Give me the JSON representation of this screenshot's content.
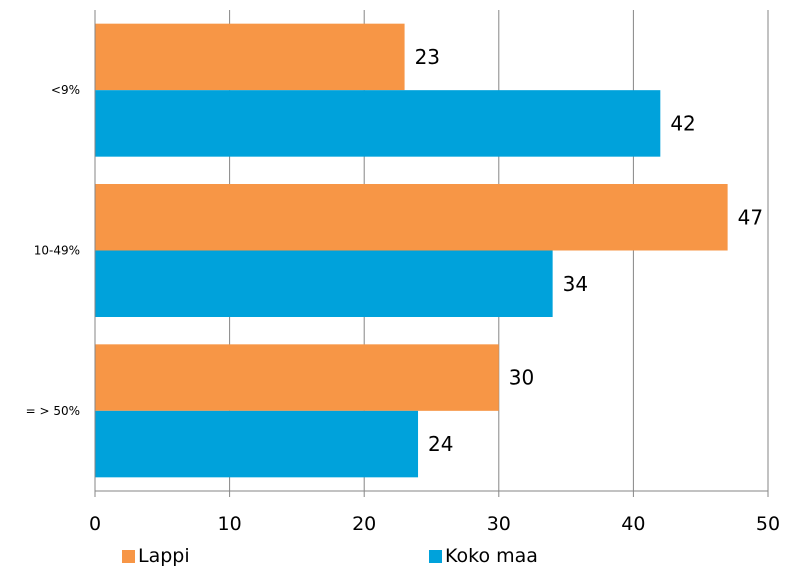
{
  "chart_data": {
    "type": "bar",
    "orientation": "horizontal",
    "categories": [
      "<9%",
      "10-49%",
      "= > 50%"
    ],
    "series": [
      {
        "name": "Lappi",
        "values": [
          23,
          47,
          30
        ],
        "color": "#F79646"
      },
      {
        "name": "Koko maa",
        "values": [
          42,
          34,
          24
        ],
        "color": "#00A2DB"
      }
    ],
    "xlim": [
      0,
      50
    ],
    "xticks": [
      0,
      10,
      20,
      30,
      40,
      50
    ],
    "grid": true,
    "legend_position": "bottom",
    "title": "",
    "xlabel": "",
    "ylabel": ""
  }
}
